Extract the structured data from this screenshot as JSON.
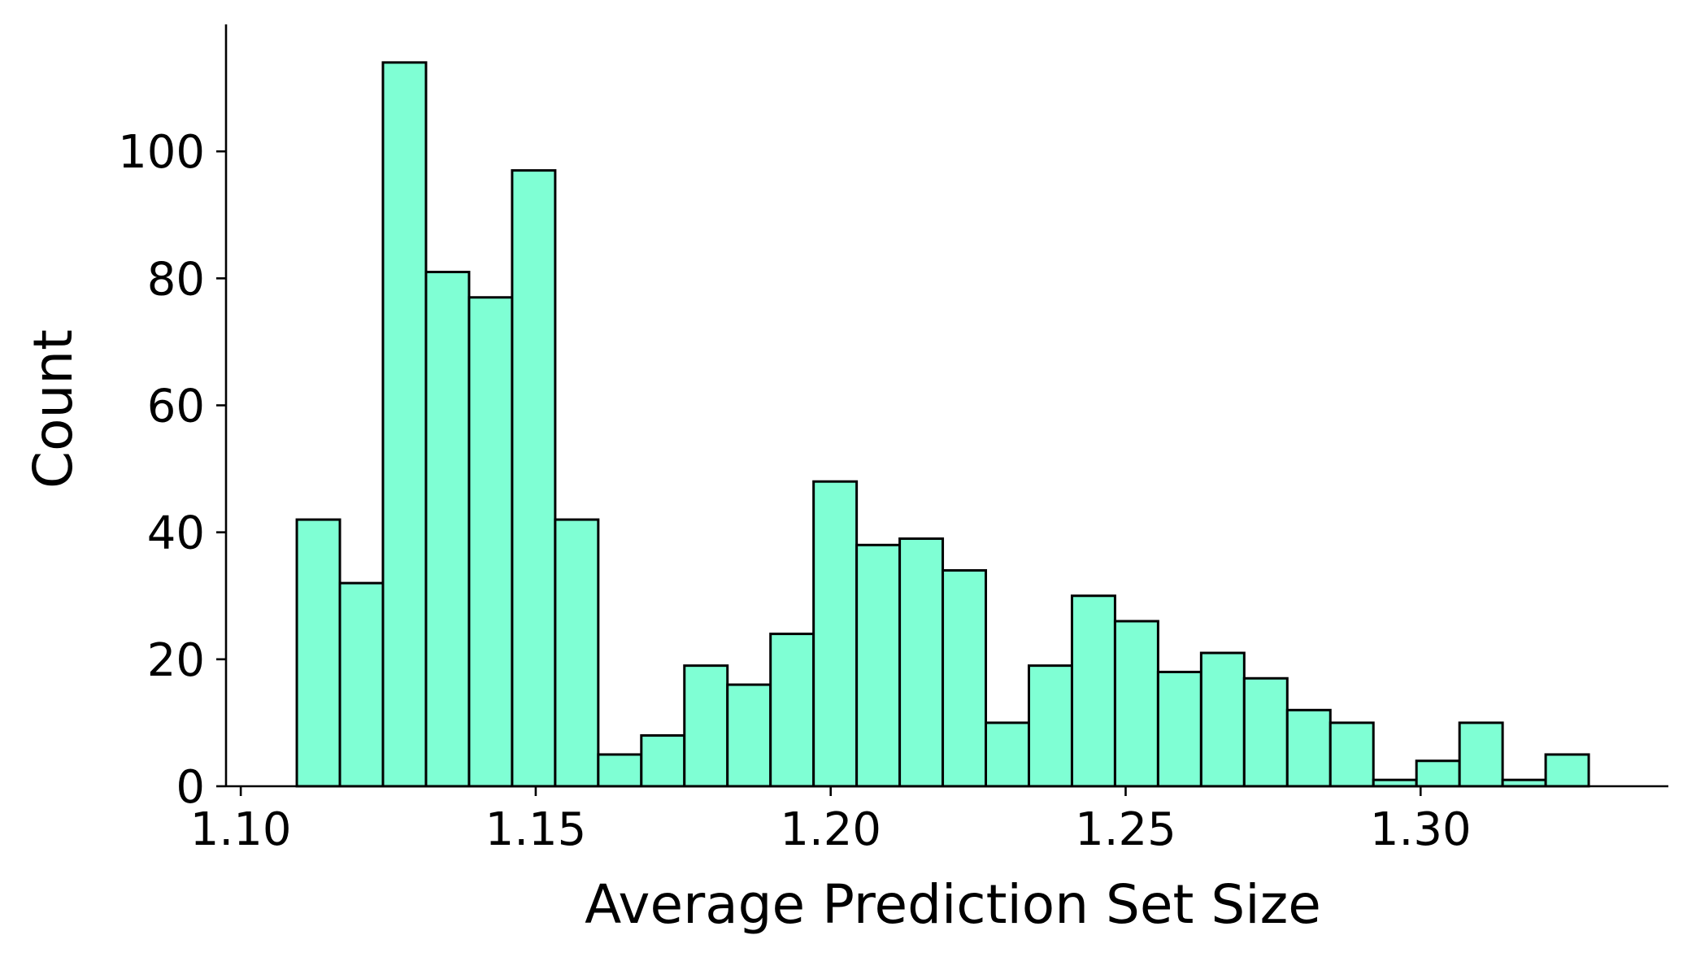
{
  "chart_data": {
    "type": "bar",
    "subtype": "histogram",
    "title": "",
    "xlabel": "Average Prediction Set Size",
    "ylabel": "Count",
    "bin_start": 1.1095,
    "bin_width": 0.0073,
    "values": [
      42,
      32,
      114,
      81,
      77,
      97,
      42,
      5,
      8,
      19,
      16,
      24,
      48,
      38,
      39,
      34,
      10,
      19,
      30,
      26,
      18,
      21,
      17,
      12,
      10,
      1,
      4,
      10,
      1,
      5
    ],
    "xlim": [
      1.0975,
      1.342
    ],
    "ylim": [
      0,
      120
    ],
    "xticks": [
      1.1,
      1.15,
      1.2,
      1.25,
      1.3
    ],
    "xtick_labels": [
      "1.10",
      "1.15",
      "1.20",
      "1.25",
      "1.30"
    ],
    "yticks": [
      0,
      20,
      40,
      60,
      80,
      100
    ],
    "ytick_labels": [
      "0",
      "20",
      "40",
      "60",
      "80",
      "100"
    ],
    "bar_color": "#7fffd4",
    "edge_color": "#000000",
    "grid": false,
    "legend": "none"
  }
}
